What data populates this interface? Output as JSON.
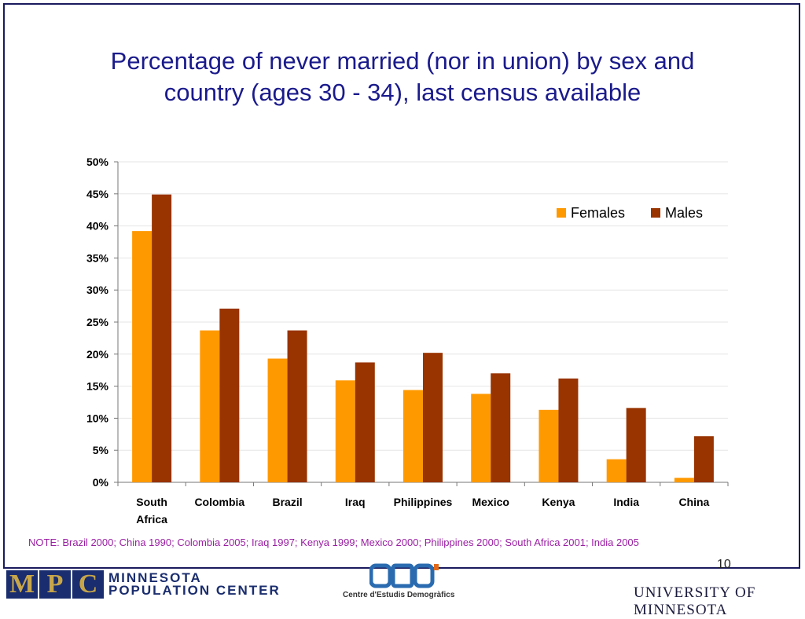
{
  "title_line1": "Percentage of never married (nor in union) by sex and",
  "title_line2": "country (ages 30 - 34), last census available",
  "chart_data": {
    "type": "bar",
    "categories": [
      "South Africa",
      "Colombia",
      "Brazil",
      "Iraq",
      "Philippines",
      "Mexico",
      "Kenya",
      "India",
      "China"
    ],
    "category_lines": [
      [
        "South",
        "Africa"
      ],
      [
        "Colombia"
      ],
      [
        "Brazil"
      ],
      [
        "Iraq"
      ],
      [
        "Philippines"
      ],
      [
        "Mexico"
      ],
      [
        "Kenya"
      ],
      [
        "India"
      ],
      [
        "China"
      ]
    ],
    "series": [
      {
        "name": "Females",
        "color": "#FF9900",
        "values": [
          39.2,
          23.7,
          19.3,
          15.9,
          14.4,
          13.8,
          11.3,
          3.6,
          0.7
        ]
      },
      {
        "name": "Males",
        "color": "#993300",
        "values": [
          44.9,
          27.1,
          23.7,
          18.7,
          20.2,
          17.0,
          16.2,
          11.6,
          7.2
        ]
      }
    ],
    "yticks": [
      "0%",
      "5%",
      "10%",
      "15%",
      "20%",
      "25%",
      "30%",
      "35%",
      "40%",
      "45%",
      "50%"
    ],
    "ylim": [
      0,
      50
    ],
    "legend_position": "top-right",
    "grid": true
  },
  "note": "NOTE: Brazil 2000; China 1990; Colombia  2005; Iraq 1997; Kenya 1999; Mexico 2000; Philippines 2000; South Africa 2001; India 2005",
  "page_number": "10",
  "footer": {
    "mpc_letters": [
      "M",
      "P",
      "C"
    ],
    "mpc_name_line1": "MINNESOTA",
    "mpc_name_line2": "POPULATION CENTER",
    "ced_caption": "Centre d'Estudis Demogràfics",
    "university": "UNIVERSITY OF MINNESOTA"
  }
}
